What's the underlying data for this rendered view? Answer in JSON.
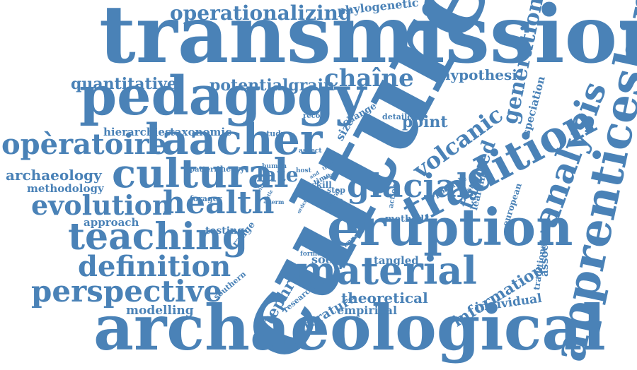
{
  "color": "#4a82b7",
  "words": [
    {
      "id": "transmission",
      "text": "transmission"
    },
    {
      "id": "culture",
      "text": "culture"
    },
    {
      "id": "pedagogy",
      "text": "pedagogy"
    },
    {
      "id": "archaeological",
      "text": "archaeological"
    },
    {
      "id": "apprenticeship",
      "text": "apprenticeship"
    },
    {
      "id": "eruption",
      "text": "eruption"
    },
    {
      "id": "tradition",
      "text": "tradition"
    },
    {
      "id": "laacher",
      "text": "laacher"
    },
    {
      "id": "cultural",
      "text": "cultural"
    },
    {
      "id": "material",
      "text": "material"
    },
    {
      "id": "teaching",
      "text": "teaching"
    },
    {
      "id": "operationalizing",
      "text": "operationalizing"
    },
    {
      "id": "operatoire",
      "text": "opèratoire"
    },
    {
      "id": "evolution",
      "text": "evolution"
    },
    {
      "id": "health",
      "text": "health"
    },
    {
      "id": "glacial",
      "text": "glacial"
    },
    {
      "id": "definition",
      "text": "definition"
    },
    {
      "id": "perspective",
      "text": "perspective"
    },
    {
      "id": "volcanic",
      "text": "volcanic"
    },
    {
      "id": "analysis",
      "text": "analysis"
    },
    {
      "id": "generation",
      "text": "generation"
    },
    {
      "id": "chaine",
      "text": "chaîne"
    },
    {
      "id": "quantitative",
      "text": "quantitative"
    },
    {
      "id": "potentialgrain",
      "text": "potentialgrain"
    },
    {
      "id": "hypothesi",
      "text": "hypothesi"
    },
    {
      "id": "phylogenetic",
      "text": "phylogenetic"
    },
    {
      "id": "archaeology",
      "text": "archaeology"
    },
    {
      "id": "methodology",
      "text": "methodology"
    },
    {
      "id": "hierarchies",
      "text": "hierarchies"
    },
    {
      "id": "taxonomic",
      "text": "taxonomic"
    },
    {
      "id": "approach",
      "text": "approach"
    },
    {
      "id": "modelling",
      "text": "modelling"
    },
    {
      "id": "late",
      "text": "late"
    },
    {
      "id": "point",
      "text": "point"
    },
    {
      "id": "tanged",
      "text": "tanged"
    },
    {
      "id": "tangled",
      "text": "tangled"
    },
    {
      "id": "social",
      "text": "social"
    },
    {
      "id": "theoretical",
      "text": "theoretical"
    },
    {
      "id": "empirical",
      "text": "empirical"
    },
    {
      "id": "literature",
      "text": "literature"
    },
    {
      "id": "tephra",
      "text": "tephra"
    },
    {
      "id": "information",
      "text": "information"
    },
    {
      "id": "individual",
      "text": "individual"
    },
    {
      "id": "method",
      "text": "method"
    },
    {
      "id": "testing",
      "text": "testing"
    },
    {
      "id": "range",
      "text": "range"
    },
    {
      "id": "speciation",
      "text": "speciation"
    },
    {
      "id": "european",
      "text": "european"
    },
    {
      "id": "associate",
      "text": "associate"
    },
    {
      "id": "traditional",
      "text": "traditional"
    },
    {
      "id": "learning",
      "text": "learning"
    },
    {
      "id": "possible",
      "text": "possible"
    },
    {
      "id": "studies",
      "text": "studies"
    },
    {
      "id": "size",
      "text": "size"
    },
    {
      "id": "change",
      "text": "change"
    },
    {
      "id": "detailed",
      "text": "detailed"
    },
    {
      "id": "record",
      "text": "record"
    },
    {
      "id": "study",
      "text": "study"
    },
    {
      "id": "aspect",
      "text": "aspect"
    },
    {
      "id": "pattern",
      "text": "pattern"
    },
    {
      "id": "theory",
      "text": "theory"
    },
    {
      "id": "human",
      "text": "human"
    },
    {
      "id": "host",
      "text": "host"
    },
    {
      "id": "time",
      "text": "time"
    },
    {
      "id": "skill",
      "text": "skill"
    },
    {
      "id": "step",
      "text": "step"
    },
    {
      "id": "tree",
      "text": "tree"
    },
    {
      "id": "forager",
      "text": "forager"
    },
    {
      "id": "term",
      "text": "term"
    },
    {
      "id": "southern",
      "text": "southern"
    },
    {
      "id": "research",
      "text": "research"
    },
    {
      "id": "formal",
      "text": "formal"
    },
    {
      "id": "impact",
      "text": "impact"
    },
    {
      "id": "central",
      "text": "central"
    },
    {
      "id": "action",
      "text": "action"
    },
    {
      "id": "trait",
      "text": "trait"
    },
    {
      "id": "way",
      "text": "way"
    },
    {
      "id": "and",
      "text": "and"
    },
    {
      "id": "vital",
      "text": "vital"
    },
    {
      "id": "static",
      "text": "static"
    },
    {
      "id": "order",
      "text": "order"
    }
  ]
}
